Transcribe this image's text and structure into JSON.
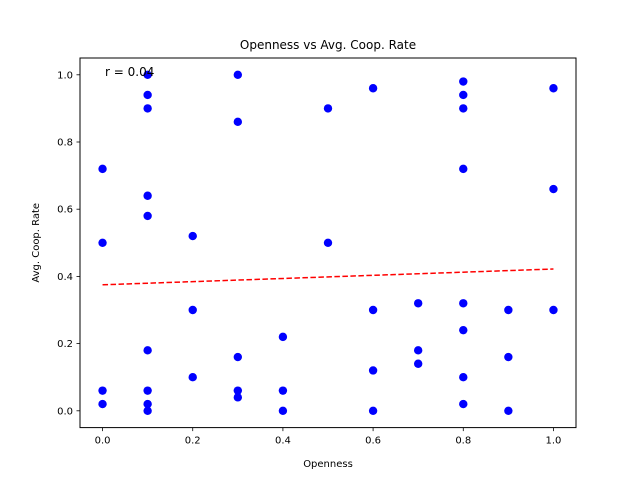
{
  "chart_data": {
    "type": "scatter",
    "title": "Openness vs Avg. Coop. Rate",
    "xlabel": "Openness",
    "ylabel": "Avg. Coop. Rate",
    "annotation": "r = 0.04",
    "xlim": [
      -0.05,
      1.05
    ],
    "ylim": [
      -0.05,
      1.05
    ],
    "x_ticks": [
      0.0,
      0.2,
      0.4,
      0.6,
      0.8,
      1.0
    ],
    "x_tick_labels": [
      "0.0",
      "0.2",
      "0.4",
      "0.6",
      "0.8",
      "1.0"
    ],
    "y_ticks": [
      0.0,
      0.2,
      0.4,
      0.6,
      0.8,
      1.0
    ],
    "y_tick_labels": [
      "0.0",
      "0.2",
      "0.4",
      "0.6",
      "0.8",
      "1.0"
    ],
    "grid": false,
    "colors": {
      "points": "#0000ff",
      "trend": "#ff0000"
    },
    "points": [
      {
        "x": 0.0,
        "y": 0.72
      },
      {
        "x": 0.0,
        "y": 0.5
      },
      {
        "x": 0.0,
        "y": 0.06
      },
      {
        "x": 0.0,
        "y": 0.02
      },
      {
        "x": 0.1,
        "y": 1.0
      },
      {
        "x": 0.1,
        "y": 0.94
      },
      {
        "x": 0.1,
        "y": 0.9
      },
      {
        "x": 0.1,
        "y": 0.64
      },
      {
        "x": 0.1,
        "y": 0.58
      },
      {
        "x": 0.1,
        "y": 0.18
      },
      {
        "x": 0.1,
        "y": 0.06
      },
      {
        "x": 0.1,
        "y": 0.02
      },
      {
        "x": 0.1,
        "y": 0.0
      },
      {
        "x": 0.2,
        "y": 0.52
      },
      {
        "x": 0.2,
        "y": 0.3
      },
      {
        "x": 0.2,
        "y": 0.1
      },
      {
        "x": 0.3,
        "y": 1.0
      },
      {
        "x": 0.3,
        "y": 0.86
      },
      {
        "x": 0.3,
        "y": 0.16
      },
      {
        "x": 0.3,
        "y": 0.06
      },
      {
        "x": 0.3,
        "y": 0.04
      },
      {
        "x": 0.4,
        "y": 0.22
      },
      {
        "x": 0.4,
        "y": 0.06
      },
      {
        "x": 0.4,
        "y": 0.0
      },
      {
        "x": 0.5,
        "y": 0.9
      },
      {
        "x": 0.5,
        "y": 0.5
      },
      {
        "x": 0.6,
        "y": 0.96
      },
      {
        "x": 0.6,
        "y": 0.3
      },
      {
        "x": 0.6,
        "y": 0.12
      },
      {
        "x": 0.6,
        "y": 0.0
      },
      {
        "x": 0.7,
        "y": 0.32
      },
      {
        "x": 0.7,
        "y": 0.18
      },
      {
        "x": 0.7,
        "y": 0.14
      },
      {
        "x": 0.8,
        "y": 0.98
      },
      {
        "x": 0.8,
        "y": 0.94
      },
      {
        "x": 0.8,
        "y": 0.9
      },
      {
        "x": 0.8,
        "y": 0.72
      },
      {
        "x": 0.8,
        "y": 0.32
      },
      {
        "x": 0.8,
        "y": 0.24
      },
      {
        "x": 0.8,
        "y": 0.1
      },
      {
        "x": 0.8,
        "y": 0.02
      },
      {
        "x": 0.9,
        "y": 0.3
      },
      {
        "x": 0.9,
        "y": 0.16
      },
      {
        "x": 0.9,
        "y": 0.0
      },
      {
        "x": 1.0,
        "y": 0.96
      },
      {
        "x": 1.0,
        "y": 0.66
      },
      {
        "x": 1.0,
        "y": 0.3
      }
    ],
    "trend_line": {
      "style": "dashed",
      "x": [
        0.0,
        1.0
      ],
      "y": [
        0.375,
        0.422
      ]
    }
  }
}
